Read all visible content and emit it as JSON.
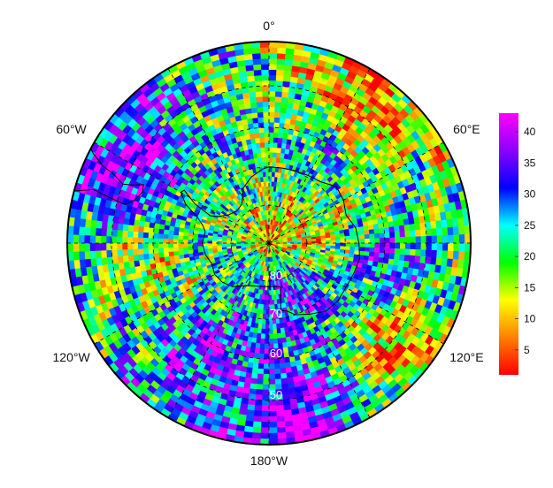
{
  "chart_data": {
    "type": "heatmap",
    "projection": "south-polar-stereographic",
    "title": "",
    "xlabel": "",
    "ylabel": "",
    "longitude_labels": [
      {
        "text": "0°",
        "lon": 0
      },
      {
        "text": "60°E",
        "lon": 60
      },
      {
        "text": "120°E",
        "lon": 120
      },
      {
        "text": "180°W",
        "lon": 180
      },
      {
        "text": "120°W",
        "lon": -120
      },
      {
        "text": "60°W",
        "lon": -60
      }
    ],
    "latitude_circles": [
      {
        "text": "80",
        "lat": -80
      },
      {
        "text": "70",
        "lat": -70
      },
      {
        "text": "60",
        "lat": -60
      },
      {
        "text": "50",
        "lat": -50
      }
    ],
    "lat_range": [
      -90,
      -40
    ],
    "meridians": [
      0,
      30,
      60,
      90,
      120,
      150,
      180,
      -150,
      -120,
      -90,
      -60,
      -30
    ],
    "grid": true,
    "coastline": "antarctica-and-south-america-tip",
    "colorbar": {
      "position": "right",
      "min": 1,
      "max": 43,
      "ticks": [
        "5",
        "10",
        "15",
        "20",
        "25",
        "30",
        "35",
        "40"
      ],
      "tick_values": [
        5,
        10,
        15,
        20,
        25,
        30,
        35,
        40
      ],
      "colormap": [
        "#ff0000",
        "#ff7f00",
        "#ffff00",
        "#00ff00",
        "#00ffff",
        "#0000ff",
        "#8b00ff",
        "#ff00ff"
      ]
    },
    "field_description_regions": [
      {
        "lat_center": -87,
        "lon_center": 0,
        "value": 3
      },
      {
        "lat_center": -80,
        "lon_center": 90,
        "value": 4
      },
      {
        "lat_center": -75,
        "lon_center": 150,
        "value": 38
      },
      {
        "lat_center": -48,
        "lon_center": 35,
        "value": 5
      },
      {
        "lat_center": -50,
        "lon_center": -60,
        "value": 40
      },
      {
        "lat_center": -45,
        "lon_center": 170,
        "value": 40
      },
      {
        "lat_center": -50,
        "lon_center": 130,
        "value": 3
      },
      {
        "lat_center": -60,
        "lon_center": 100,
        "value": 36
      },
      {
        "lat_center": -60,
        "lon_center": -150,
        "value": 37
      },
      {
        "lat_center": -60,
        "lon_center": -100,
        "value": 12
      },
      {
        "lat_center": -65,
        "lon_center": 30,
        "value": 30
      },
      {
        "lat_center": -70,
        "lon_center": -30,
        "value": 22
      },
      {
        "lat_center": -65,
        "lon_center": -120,
        "value": 18
      },
      {
        "lat_center": -70,
        "lon_center": 60,
        "value": 15
      }
    ]
  }
}
